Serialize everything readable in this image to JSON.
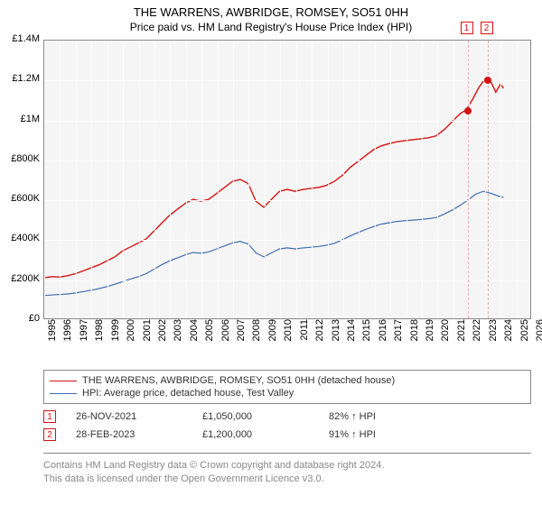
{
  "title": "THE WARRENS, AWBRIDGE, ROMSEY, SO51 0HH",
  "subtitle": "Price paid vs. HM Land Registry's House Price Index (HPI)",
  "colors": {
    "series1": "#d51313",
    "series2": "#3f6db0",
    "plot_bg": "#f5f5f5",
    "plot_border": "#888888",
    "grid": "#fcfcfc",
    "marker_vline": "#e5b0b0",
    "footer_text": "#888888"
  },
  "chart": {
    "type": "line",
    "x_domain": [
      1995,
      2026
    ],
    "y_domain": [
      0,
      1400000
    ],
    "y_ticks": [
      {
        "v": 0,
        "label": "£0"
      },
      {
        "v": 200000,
        "label": "£200K"
      },
      {
        "v": 400000,
        "label": "£400K"
      },
      {
        "v": 600000,
        "label": "£600K"
      },
      {
        "v": 800000,
        "label": "£800K"
      },
      {
        "v": 1000000,
        "label": "£1M"
      },
      {
        "v": 1200000,
        "label": "£1.2M"
      },
      {
        "v": 1400000,
        "label": "£1.4M"
      }
    ],
    "x_ticks": [
      1995,
      1996,
      1997,
      1998,
      1999,
      2000,
      2001,
      2002,
      2003,
      2004,
      2005,
      2006,
      2007,
      2008,
      2009,
      2010,
      2011,
      2012,
      2013,
      2014,
      2015,
      2016,
      2017,
      2018,
      2019,
      2020,
      2021,
      2022,
      2023,
      2024,
      2025,
      2026
    ],
    "series": [
      {
        "name": "price-paid",
        "color": "#d51313",
        "line_width": 1.4,
        "data": [
          [
            1995.0,
            205000
          ],
          [
            1995.5,
            210000
          ],
          [
            1996.0,
            208000
          ],
          [
            1996.5,
            215000
          ],
          [
            1997.0,
            225000
          ],
          [
            1997.5,
            240000
          ],
          [
            1998.0,
            255000
          ],
          [
            1998.5,
            270000
          ],
          [
            1999.0,
            290000
          ],
          [
            1999.5,
            310000
          ],
          [
            2000.0,
            340000
          ],
          [
            2000.5,
            360000
          ],
          [
            2001.0,
            380000
          ],
          [
            2001.5,
            400000
          ],
          [
            2002.0,
            440000
          ],
          [
            2002.5,
            480000
          ],
          [
            2003.0,
            520000
          ],
          [
            2003.5,
            550000
          ],
          [
            2004.0,
            580000
          ],
          [
            2004.5,
            600000
          ],
          [
            2005.0,
            590000
          ],
          [
            2005.5,
            600000
          ],
          [
            2006.0,
            630000
          ],
          [
            2006.5,
            660000
          ],
          [
            2007.0,
            690000
          ],
          [
            2007.5,
            700000
          ],
          [
            2008.0,
            680000
          ],
          [
            2008.5,
            590000
          ],
          [
            2009.0,
            560000
          ],
          [
            2009.5,
            600000
          ],
          [
            2010.0,
            640000
          ],
          [
            2010.5,
            650000
          ],
          [
            2011.0,
            640000
          ],
          [
            2011.5,
            650000
          ],
          [
            2012.0,
            655000
          ],
          [
            2012.5,
            660000
          ],
          [
            2013.0,
            670000
          ],
          [
            2013.5,
            690000
          ],
          [
            2014.0,
            720000
          ],
          [
            2014.5,
            760000
          ],
          [
            2015.0,
            790000
          ],
          [
            2015.5,
            820000
          ],
          [
            2016.0,
            850000
          ],
          [
            2016.5,
            870000
          ],
          [
            2017.0,
            880000
          ],
          [
            2017.5,
            890000
          ],
          [
            2018.0,
            895000
          ],
          [
            2018.5,
            900000
          ],
          [
            2019.0,
            905000
          ],
          [
            2019.5,
            910000
          ],
          [
            2020.0,
            920000
          ],
          [
            2020.5,
            950000
          ],
          [
            2021.0,
            990000
          ],
          [
            2021.5,
            1030000
          ],
          [
            2021.9,
            1050000
          ],
          [
            2022.3,
            1100000
          ],
          [
            2022.7,
            1160000
          ],
          [
            2023.0,
            1195000
          ],
          [
            2023.16,
            1200000
          ],
          [
            2023.5,
            1190000
          ],
          [
            2023.8,
            1140000
          ],
          [
            2024.1,
            1180000
          ],
          [
            2024.3,
            1160000
          ]
        ]
      },
      {
        "name": "hpi",
        "color": "#3f6db0",
        "line_width": 1.2,
        "data": [
          [
            1995.0,
            115000
          ],
          [
            1995.5,
            118000
          ],
          [
            1996.0,
            120000
          ],
          [
            1996.5,
            123000
          ],
          [
            1997.0,
            128000
          ],
          [
            1997.5,
            135000
          ],
          [
            1998.0,
            142000
          ],
          [
            1998.5,
            150000
          ],
          [
            1999.0,
            160000
          ],
          [
            1999.5,
            172000
          ],
          [
            2000.0,
            185000
          ],
          [
            2000.5,
            198000
          ],
          [
            2001.0,
            210000
          ],
          [
            2001.5,
            225000
          ],
          [
            2002.0,
            248000
          ],
          [
            2002.5,
            270000
          ],
          [
            2003.0,
            290000
          ],
          [
            2003.5,
            305000
          ],
          [
            2004.0,
            320000
          ],
          [
            2004.5,
            332000
          ],
          [
            2005.0,
            328000
          ],
          [
            2005.5,
            335000
          ],
          [
            2006.0,
            350000
          ],
          [
            2006.5,
            365000
          ],
          [
            2007.0,
            380000
          ],
          [
            2007.5,
            388000
          ],
          [
            2008.0,
            375000
          ],
          [
            2008.5,
            330000
          ],
          [
            2009.0,
            310000
          ],
          [
            2009.5,
            330000
          ],
          [
            2010.0,
            350000
          ],
          [
            2010.5,
            355000
          ],
          [
            2011.0,
            350000
          ],
          [
            2011.5,
            355000
          ],
          [
            2012.0,
            358000
          ],
          [
            2012.5,
            362000
          ],
          [
            2013.0,
            368000
          ],
          [
            2013.5,
            378000
          ],
          [
            2014.0,
            395000
          ],
          [
            2014.5,
            415000
          ],
          [
            2015.0,
            432000
          ],
          [
            2015.5,
            448000
          ],
          [
            2016.0,
            462000
          ],
          [
            2016.5,
            475000
          ],
          [
            2017.0,
            482000
          ],
          [
            2017.5,
            488000
          ],
          [
            2018.0,
            492000
          ],
          [
            2018.5,
            495000
          ],
          [
            2019.0,
            498000
          ],
          [
            2019.5,
            502000
          ],
          [
            2020.0,
            508000
          ],
          [
            2020.5,
            525000
          ],
          [
            2021.0,
            545000
          ],
          [
            2021.5,
            568000
          ],
          [
            2022.0,
            595000
          ],
          [
            2022.5,
            625000
          ],
          [
            2023.0,
            640000
          ],
          [
            2023.5,
            630000
          ],
          [
            2024.0,
            615000
          ],
          [
            2024.3,
            610000
          ]
        ]
      }
    ],
    "markers": [
      {
        "n": "1",
        "x": 2021.9,
        "y": 1050000,
        "color": "#d51313"
      },
      {
        "n": "2",
        "x": 2023.16,
        "y": 1200000,
        "color": "#d51313"
      }
    ]
  },
  "legend": [
    {
      "color": "#d51313",
      "label": "THE WARRENS, AWBRIDGE, ROMSEY, SO51 0HH (detached house)"
    },
    {
      "color": "#3f6db0",
      "label": "HPI: Average price, detached house, Test Valley"
    }
  ],
  "sales": [
    {
      "n": "1",
      "color": "#d51313",
      "date": "26-NOV-2021",
      "price": "£1,050,000",
      "pct": "82% ↑ HPI"
    },
    {
      "n": "2",
      "color": "#d51313",
      "date": "28-FEB-2023",
      "price": "£1,200,000",
      "pct": "91% ↑ HPI"
    }
  ],
  "footer": {
    "line1": "Contains HM Land Registry data © Crown copyright and database right 2024.",
    "line2": "This data is licensed under the Open Government Licence v3.0."
  }
}
